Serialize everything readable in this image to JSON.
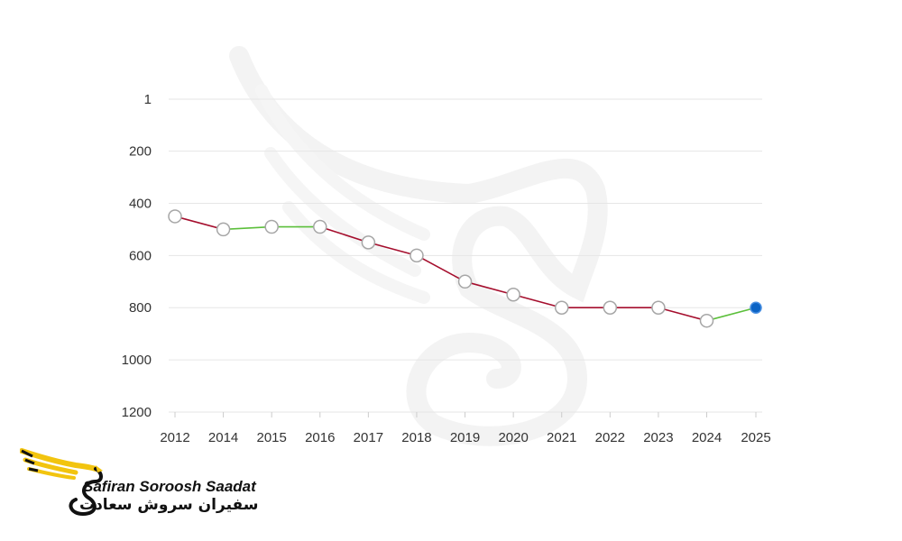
{
  "chart_data": {
    "type": "line",
    "title": "",
    "xlabel": "",
    "ylabel": "",
    "y_inverted": true,
    "ylim": [
      1,
      1200
    ],
    "y_ticks": [
      "1",
      "200",
      "400",
      "600",
      "800",
      "1000",
      "1200"
    ],
    "categories": [
      "2012",
      "2014",
      "2015",
      "2016",
      "2017",
      "2018",
      "2019",
      "2020",
      "2021",
      "2022",
      "2023",
      "2024",
      "2025"
    ],
    "values": [
      450,
      500,
      490,
      490,
      550,
      600,
      700,
      750,
      800,
      800,
      800,
      850,
      800
    ],
    "colors": {
      "worsened": "#a50e2d",
      "improved": "#5bbf3a",
      "point_fill": "#ffffff",
      "point_stroke": "#a6a6a6",
      "latest_point": "#0b63c5"
    }
  },
  "brand": {
    "name_latin": "Safiran Soroosh Saadat",
    "name_persian": "سفیران سروش سعادت",
    "accent_color": "#f2c40f"
  }
}
